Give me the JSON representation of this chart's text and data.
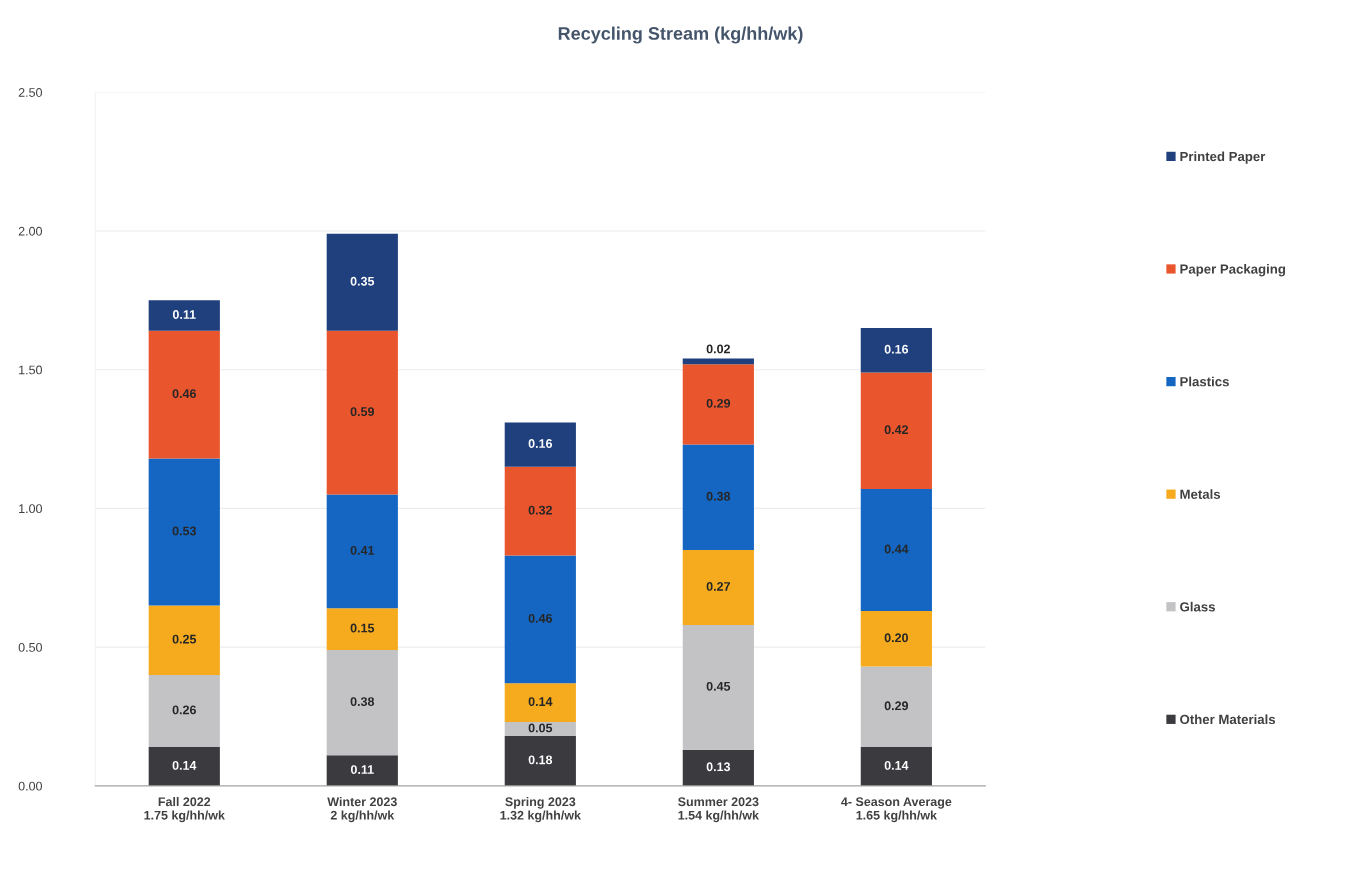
{
  "chart_data": {
    "type": "bar",
    "title": "Recycling Stream (kg/hh/wk)",
    "categories": [
      "Fall 2022\n1.75 kg/hh/wk",
      "Winter 2023\n2 kg/hh/wk",
      "Spring 2023\n1.32 kg/hh/wk",
      "Summer 2023\n1.54 kg/hh/wk",
      "4- Season Average\n1.65 kg/hh/wk"
    ],
    "stacked": true,
    "series": [
      {
        "name": "Other Materials",
        "color": "#3b3b3f",
        "values": [
          0.14,
          0.11,
          0.18,
          0.13,
          0.14
        ],
        "value_labels": [
          "0.14",
          "0.11",
          "0.18",
          "0.13",
          "0.14"
        ]
      },
      {
        "name": "Glass",
        "color": "#c3c3c6",
        "values": [
          0.26,
          0.38,
          0.05,
          0.45,
          0.29
        ],
        "value_labels": [
          "0.26",
          "0.38",
          "0.05",
          "0.45",
          "0.29"
        ]
      },
      {
        "name": "Metals",
        "color": "#f6ab1e",
        "values": [
          0.25,
          0.15,
          0.14,
          0.27,
          0.2
        ],
        "value_labels": [
          "0.25",
          "0.15",
          "0.14",
          "0.27",
          "0.20"
        ]
      },
      {
        "name": "Plastics",
        "color": "#1466c2",
        "values": [
          0.53,
          0.41,
          0.46,
          0.38,
          0.44
        ],
        "value_labels": [
          "0.53",
          "0.41",
          "0.46",
          "0.38",
          "0.44"
        ]
      },
      {
        "name": "Paper Packaging",
        "color": "#e9552d",
        "values": [
          0.46,
          0.59,
          0.32,
          0.29,
          0.42
        ],
        "value_labels": [
          "0.46",
          "0.59",
          "0.32",
          "0.29",
          "0.42"
        ]
      },
      {
        "name": "Printed Paper",
        "color": "#1f3f7d",
        "values": [
          0.11,
          0.35,
          0.16,
          0.02,
          0.16
        ],
        "value_labels": [
          "0.11",
          "0.35",
          "0.16",
          "0.02",
          "0.16"
        ]
      }
    ],
    "ylim": [
      0,
      2.5
    ],
    "yticks": [
      {
        "value": 0,
        "label": "0.00"
      },
      {
        "value": 0.5,
        "label": "0.50"
      },
      {
        "value": 1,
        "label": "1.00"
      },
      {
        "value": 1.5,
        "label": "1.50"
      },
      {
        "value": 2,
        "label": "2.00"
      },
      {
        "value": 2.5,
        "label": "2.50"
      }
    ],
    "grid": "y",
    "legend": "right"
  }
}
